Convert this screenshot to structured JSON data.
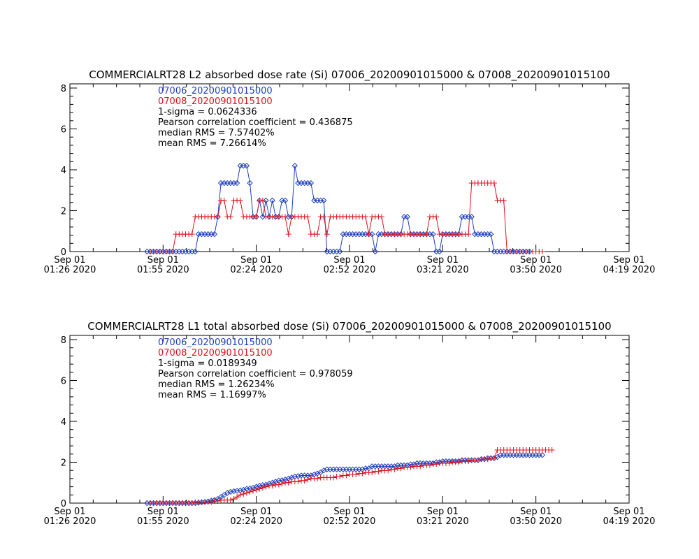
{
  "colors": {
    "series1": "#1f3fbf",
    "series2": "#e0101a",
    "axis": "#000000"
  },
  "chart_data": [
    {
      "type": "line",
      "title": "COMMERCIALRT28 L2 absorbed dose rate (Si) 07006_20200901015000 & 07008_20200901015100",
      "ylim": [
        0,
        8
      ],
      "yticks": [
        0,
        2,
        4,
        6,
        8
      ],
      "xlim_min": [
        0,
        174
      ],
      "xticks": [
        {
          "t": 0,
          "l1": "Sep 01",
          "l2": "01:26 2020"
        },
        {
          "t": 29,
          "l1": "Sep 01",
          "l2": "01:55 2020"
        },
        {
          "t": 58,
          "l1": "Sep 01",
          "l2": "02:24 2020"
        },
        {
          "t": 87,
          "l1": "Sep 01",
          "l2": "02:52 2020"
        },
        {
          "t": 116,
          "l1": "Sep 01",
          "l2": "03:21 2020"
        },
        {
          "t": 145,
          "l1": "Sep 01",
          "l2": "03:50 2020"
        },
        {
          "t": 174,
          "l1": "Sep 01",
          "l2": "04:19 2020"
        }
      ],
      "annotations": [
        "07006_20200901015000",
        "07008_20200901015100",
        "1-sigma = 0.0624336",
        "Pearson correlation coefficient = 0.436875",
        "median RMS = 7.57402%",
        "mean RMS = 7.26614%"
      ],
      "series": [
        {
          "name": "07006_20200901015000",
          "marker": "diamond",
          "t_start": 24,
          "t_step": 1,
          "values": [
            0,
            0,
            0,
            0,
            0,
            0,
            0,
            0,
            0,
            0,
            0,
            0,
            0,
            0,
            0,
            0,
            0.85,
            0.85,
            0.85,
            0.85,
            0.85,
            0.85,
            1.7,
            3.35,
            3.35,
            3.35,
            3.35,
            3.35,
            3.35,
            4.2,
            4.2,
            4.2,
            3.35,
            1.7,
            1.7,
            2.5,
            1.7,
            2.5,
            1.7,
            2.5,
            1.7,
            1.7,
            2.5,
            2.5,
            1.7,
            1.7,
            4.2,
            3.35,
            3.35,
            3.35,
            3.35,
            3.35,
            2.5,
            2.5,
            2.5,
            2.5,
            0,
            0,
            0,
            0,
            0,
            0.85,
            0.85,
            0.85,
            0.85,
            0.85,
            0.85,
            0.85,
            0.85,
            0.85,
            0.85,
            0,
            0.85,
            0.85,
            0.85,
            0.85,
            0.85,
            0.85,
            0.85,
            0.85,
            1.7,
            1.7,
            0.85,
            0.85,
            0.85,
            0.85,
            0.85,
            0.85,
            0.85,
            0.85,
            0,
            0,
            0.85,
            0.85,
            0.85,
            0.85,
            0.85,
            0.85,
            1.7,
            1.7,
            1.7,
            1.7,
            0.85,
            0.85,
            0.85,
            0.85,
            0.85,
            0.85,
            0,
            0,
            0,
            0,
            0,
            0,
            0,
            0,
            0,
            0,
            0,
            0
          ]
        },
        {
          "name": "07008_20200901015100",
          "marker": "plus",
          "t_start": 25,
          "t_step": 1,
          "values": [
            0,
            0,
            0,
            0,
            0,
            0,
            0,
            0,
            0.85,
            0.85,
            0.85,
            0.85,
            0.85,
            0.85,
            1.7,
            1.7,
            1.7,
            1.7,
            1.7,
            1.7,
            1.7,
            1.7,
            2.5,
            2.5,
            1.7,
            1.7,
            2.5,
            2.5,
            2.5,
            1.7,
            1.7,
            1.7,
            1.7,
            1.7,
            2.5,
            2.5,
            1.7,
            1.7,
            1.7,
            1.7,
            1.7,
            1.7,
            1.7,
            0.85,
            1.7,
            1.7,
            1.7,
            1.7,
            1.7,
            1.7,
            0.85,
            0.85,
            0.85,
            1.7,
            1.7,
            0.85,
            1.7,
            1.7,
            1.7,
            1.7,
            1.7,
            1.7,
            1.7,
            1.7,
            1.7,
            1.7,
            1.7,
            1.7,
            0.85,
            1.7,
            1.7,
            1.7,
            1.7,
            0.85,
            0.85,
            0.85,
            0.85,
            0.85,
            0.85,
            0.85,
            0.85,
            0.85,
            0.85,
            0.85,
            0.85,
            0.85,
            0.85,
            1.7,
            1.7,
            1.7,
            0.85,
            0.85,
            0.85,
            0.85,
            0.85,
            0.85,
            0.85,
            0.85,
            0.85,
            0.85,
            3.35,
            3.35,
            3.35,
            3.35,
            3.35,
            3.35,
            3.35,
            3.35,
            2.5,
            2.5,
            2.5,
            0,
            0,
            0,
            0,
            0,
            0,
            0,
            0,
            0,
            0,
            0,
            0
          ]
        }
      ]
    },
    {
      "type": "line",
      "title": "COMMERCIALRT28 L1 total absorbed dose (Si) 07006_20200901015000 & 07008_20200901015100",
      "ylim": [
        0,
        8
      ],
      "yticks": [
        0,
        2,
        4,
        6,
        8
      ],
      "xlim_min": [
        0,
        174
      ],
      "xticks": [
        {
          "t": 0,
          "l1": "Sep 01",
          "l2": "01:26 2020"
        },
        {
          "t": 29,
          "l1": "Sep 01",
          "l2": "01:55 2020"
        },
        {
          "t": 58,
          "l1": "Sep 01",
          "l2": "02:24 2020"
        },
        {
          "t": 87,
          "l1": "Sep 01",
          "l2": "02:52 2020"
        },
        {
          "t": 116,
          "l1": "Sep 01",
          "l2": "03:21 2020"
        },
        {
          "t": 145,
          "l1": "Sep 01",
          "l2": "03:50 2020"
        },
        {
          "t": 174,
          "l1": "Sep 01",
          "l2": "04:19 2020"
        }
      ],
      "annotations": [
        "07006_20200901015000",
        "07008_20200901015100",
        "1-sigma = 0.0189349",
        "Pearson correlation coefficient = 0.978059",
        "median RMS = 1.26234%",
        "mean RMS = 1.16997%"
      ],
      "series": [
        {
          "name": "07006_20200901015000",
          "marker": "diamond",
          "t_start": 24,
          "t_step": 1,
          "values": [
            0,
            0,
            0,
            0,
            0,
            0,
            0,
            0,
            0,
            0,
            0,
            0,
            0,
            0,
            0,
            0,
            0.02,
            0.04,
            0.06,
            0.08,
            0.12,
            0.15,
            0.2,
            0.3,
            0.4,
            0.5,
            0.55,
            0.58,
            0.6,
            0.62,
            0.65,
            0.7,
            0.72,
            0.75,
            0.8,
            0.85,
            0.88,
            0.9,
            0.95,
            1.0,
            1.05,
            1.1,
            1.12,
            1.15,
            1.2,
            1.25,
            1.3,
            1.32,
            1.35,
            1.35,
            1.35,
            1.35,
            1.4,
            1.45,
            1.5,
            1.6,
            1.65,
            1.65,
            1.65,
            1.65,
            1.65,
            1.65,
            1.65,
            1.65,
            1.65,
            1.65,
            1.65,
            1.65,
            1.7,
            1.7,
            1.8,
            1.8,
            1.8,
            1.8,
            1.8,
            1.8,
            1.8,
            1.8,
            1.85,
            1.85,
            1.85,
            1.85,
            1.9,
            1.9,
            1.95,
            1.95,
            1.95,
            1.95,
            1.95,
            1.95,
            2.0,
            2.0,
            2.05,
            2.05,
            2.05,
            2.05,
            2.05,
            2.05,
            2.1,
            2.1,
            2.1,
            2.1,
            2.1,
            2.1,
            2.15,
            2.15,
            2.2,
            2.2,
            2.2,
            2.25,
            2.35,
            2.35,
            2.35,
            2.35,
            2.35,
            2.35,
            2.35,
            2.35,
            2.35,
            2.35,
            2.35,
            2.35,
            2.35,
            2.35
          ]
        },
        {
          "name": "07008_20200901015100",
          "marker": "plus",
          "t_start": 25,
          "t_step": 1,
          "values": [
            0,
            0,
            0,
            0,
            0,
            0,
            0,
            0,
            0,
            0,
            0,
            0,
            0,
            0,
            0.05,
            0.05,
            0.05,
            0.05,
            0.05,
            0.05,
            0.1,
            0.1,
            0.15,
            0.15,
            0.15,
            0.15,
            0.2,
            0.3,
            0.4,
            0.45,
            0.5,
            0.55,
            0.6,
            0.65,
            0.7,
            0.75,
            0.8,
            0.85,
            0.85,
            0.9,
            0.9,
            0.95,
            1.0,
            1.0,
            1.05,
            1.05,
            1.05,
            1.1,
            1.1,
            1.15,
            1.2,
            1.2,
            1.2,
            1.25,
            1.25,
            1.25,
            1.25,
            1.25,
            1.3,
            1.3,
            1.35,
            1.35,
            1.4,
            1.4,
            1.4,
            1.45,
            1.45,
            1.5,
            1.5,
            1.5,
            1.55,
            1.55,
            1.6,
            1.6,
            1.6,
            1.65,
            1.65,
            1.7,
            1.7,
            1.75,
            1.75,
            1.75,
            1.8,
            1.8,
            1.8,
            1.85,
            1.85,
            1.85,
            1.9,
            1.9,
            1.95,
            1.95,
            1.95,
            1.95,
            2.0,
            2.0,
            2.0,
            2.05,
            2.05,
            2.05,
            2.1,
            2.1,
            2.1,
            2.15,
            2.15,
            2.15,
            2.2,
            2.2,
            2.6,
            2.6,
            2.6,
            2.6,
            2.6,
            2.6,
            2.6,
            2.6,
            2.6,
            2.6,
            2.6,
            2.6,
            2.6,
            2.6,
            2.6,
            2.6,
            2.6,
            2.6
          ]
        }
      ]
    }
  ]
}
